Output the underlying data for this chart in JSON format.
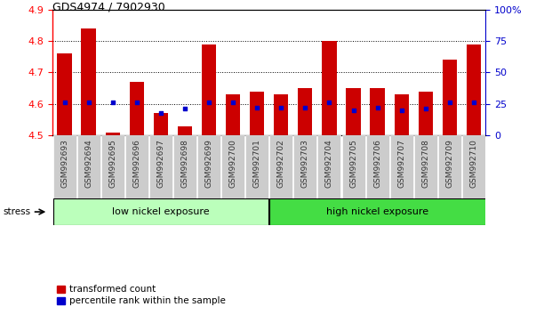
{
  "title": "GDS4974 / 7902930",
  "samples": [
    "GSM992693",
    "GSM992694",
    "GSM992695",
    "GSM992696",
    "GSM992697",
    "GSM992698",
    "GSM992699",
    "GSM992700",
    "GSM992701",
    "GSM992702",
    "GSM992703",
    "GSM992704",
    "GSM992705",
    "GSM992706",
    "GSM992707",
    "GSM992708",
    "GSM992709",
    "GSM992710"
  ],
  "transformed_count": [
    4.76,
    4.84,
    4.51,
    4.67,
    4.57,
    4.53,
    4.79,
    4.63,
    4.64,
    4.63,
    4.65,
    4.8,
    4.65,
    4.65,
    4.63,
    4.64,
    4.74,
    4.79
  ],
  "percentile_rank": [
    26,
    26,
    26,
    26,
    18,
    21,
    26,
    26,
    22,
    22,
    22,
    26,
    20,
    22,
    20,
    21,
    26,
    26
  ],
  "bar_bottom": 4.5,
  "ylim_left": [
    4.5,
    4.9
  ],
  "ylim_right": [
    0,
    100
  ],
  "right_ticks": [
    0,
    25,
    50,
    75,
    100
  ],
  "right_tick_labels": [
    "0",
    "25",
    "50",
    "75",
    "100%"
  ],
  "left_ticks": [
    4.5,
    4.6,
    4.7,
    4.8,
    4.9
  ],
  "red_color": "#cc0000",
  "blue_color": "#0000cc",
  "group1_label": "low nickel exposure",
  "group2_label": "high nickel exposure",
  "group1_count": 9,
  "group1_color": "#bbffbb",
  "group2_color": "#44dd44",
  "stress_label": "stress",
  "legend_red": "transformed count",
  "legend_blue": "percentile rank within the sample",
  "bar_width": 0.6,
  "tick_label_bg": "#cccccc",
  "bg_plot": "#ffffff"
}
